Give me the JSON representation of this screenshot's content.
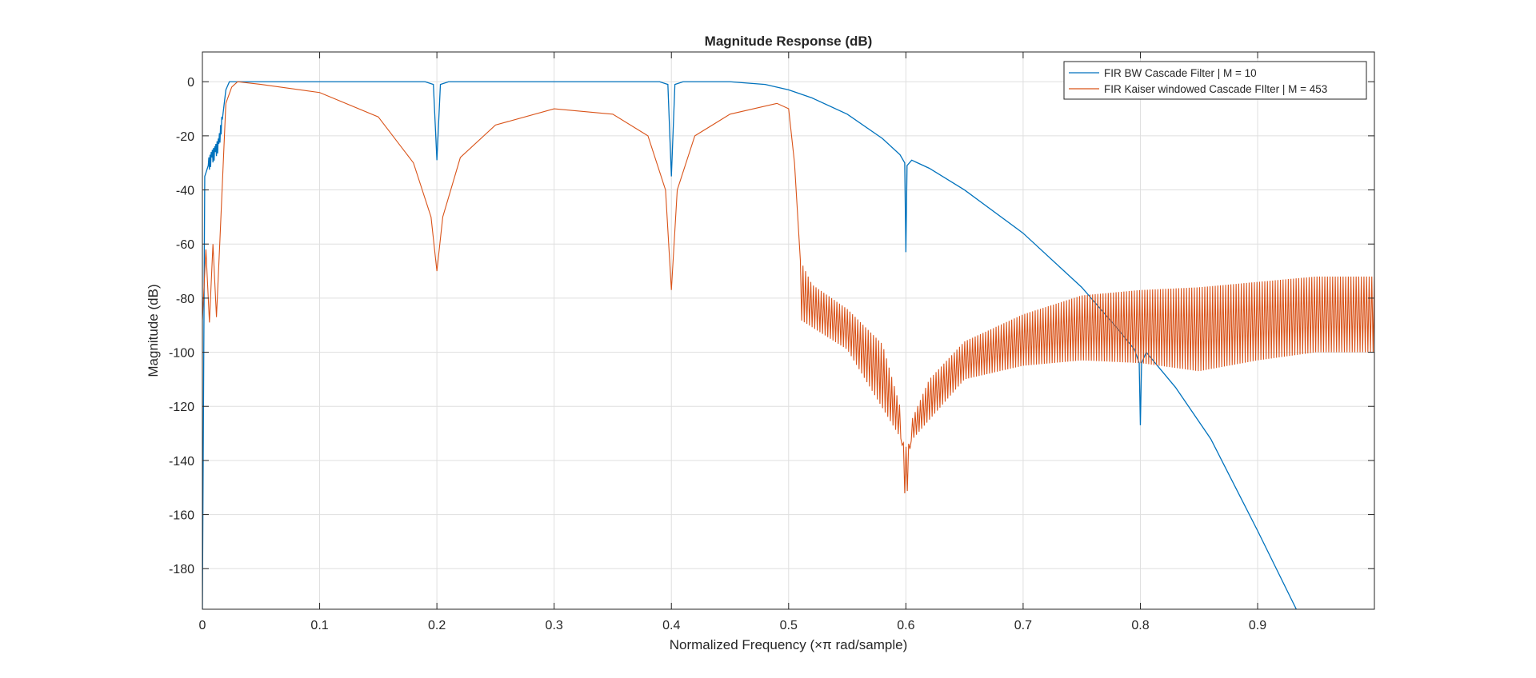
{
  "chart_data": {
    "type": "line",
    "title": "Magnitude Response (dB)",
    "xlabel": "Normalized Frequency (×π rad/sample)",
    "ylabel": "Magnitude (dB)",
    "xlim": [
      0,
      0.9996
    ],
    "ylim": [
      -195,
      11
    ],
    "xticks": [
      0,
      0.1,
      0.2,
      0.3,
      0.4,
      0.5,
      0.6,
      0.7,
      0.8,
      0.9
    ],
    "xtick_labels": [
      "0",
      "0.1",
      "0.2",
      "0.3",
      "0.4",
      "0.5",
      "0.6",
      "0.7",
      "0.8",
      "0.9"
    ],
    "yticks": [
      0,
      -20,
      -40,
      -60,
      -80,
      -100,
      -120,
      -140,
      -160,
      -180
    ],
    "ytick_labels": [
      "0",
      "-20",
      "-40",
      "-60",
      "-80",
      "-100",
      "-120",
      "-140",
      "-160",
      "-180"
    ],
    "grid": true,
    "legend_position": "top-right",
    "series": [
      {
        "name": "FIR BW Cascade Filter | M = 10",
        "color": "#0072BD",
        "x": [
          0,
          0.002,
          0.005,
          0.008,
          0.011,
          0.014,
          0.017,
          0.02,
          0.023,
          0.026,
          0.03,
          0.05,
          0.1,
          0.15,
          0.19,
          0.197,
          0.2,
          0.203,
          0.21,
          0.25,
          0.3,
          0.35,
          0.39,
          0.397,
          0.4,
          0.403,
          0.41,
          0.45,
          0.48,
          0.5,
          0.52,
          0.55,
          0.58,
          0.595,
          0.599,
          0.6,
          0.601,
          0.605,
          0.62,
          0.65,
          0.7,
          0.75,
          0.78,
          0.795,
          0.799,
          0.8,
          0.801,
          0.805,
          0.83,
          0.86,
          0.9,
          0.933
        ],
        "y": [
          -195,
          -35,
          -31,
          -28,
          -26,
          -23,
          -14,
          -3,
          0,
          0,
          0,
          0,
          0,
          0,
          0,
          -1,
          -29,
          -1,
          0,
          0,
          0,
          0,
          0,
          -1,
          -35,
          -1,
          0,
          0,
          -1,
          -3,
          -6,
          -12,
          -21,
          -27,
          -30,
          -63,
          -31,
          -29,
          -32,
          -40,
          -56,
          -76,
          -91,
          -99,
          -104,
          -127,
          -104,
          -100,
          -113,
          -132,
          -166,
          -195
        ]
      },
      {
        "name": "FIR Kaiser windowed Cascade FIlter | M = 453",
        "color": "#D95319",
        "x": [
          0,
          0.003,
          0.006,
          0.009,
          0.012,
          0.015,
          0.02,
          0.025,
          0.03,
          0.05,
          0.1,
          0.15,
          0.18,
          0.195,
          0.2,
          0.205,
          0.22,
          0.25,
          0.3,
          0.35,
          0.38,
          0.395,
          0.4,
          0.405,
          0.42,
          0.45,
          0.49,
          0.5,
          0.505,
          0.51,
          0.52,
          0.55,
          0.58,
          0.595,
          0.6,
          0.605,
          0.62,
          0.65,
          0.7,
          0.75,
          0.8,
          0.85,
          0.9,
          0.95,
          0.9996
        ],
        "y": [
          -88,
          -62,
          -89,
          -60,
          -87,
          -58,
          -8,
          -2,
          0,
          -1,
          -4,
          -13,
          -30,
          -50,
          -70,
          -50,
          -28,
          -16,
          -10,
          -12,
          -20,
          -40,
          -77,
          -40,
          -20,
          -12,
          -8,
          -10,
          -30,
          -66,
          -75,
          -84,
          -97,
          -120,
          -160,
          -125,
          -110,
          -96,
          -86,
          -79,
          -77,
          -76,
          -74,
          -72,
          -72
        ],
        "stopband_ripple_floor": {
          "x": [
            0.51,
            0.55,
            0.6,
            0.65,
            0.7,
            0.75,
            0.8,
            0.85,
            0.9,
            0.95,
            0.9996
          ],
          "y": [
            -88,
            -99,
            -135,
            -110,
            -105,
            -103,
            -104,
            -107,
            -103,
            -100,
            -100
          ]
        }
      }
    ]
  }
}
